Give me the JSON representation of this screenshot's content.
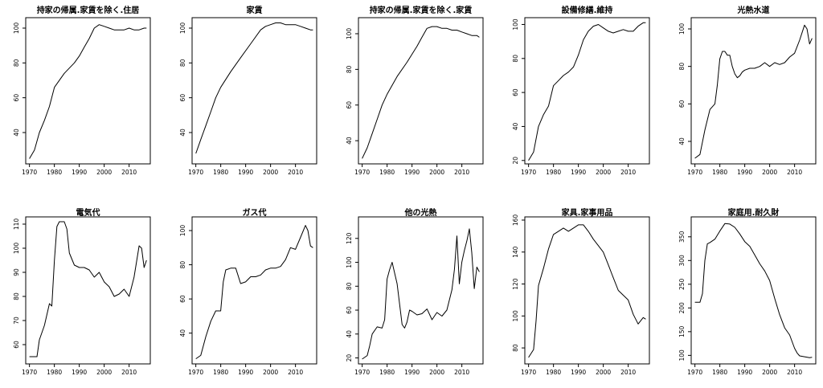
{
  "chart_data": [
    {
      "type": "line",
      "title": "持家の帰属.家賃を除く.住居",
      "x": [
        1970,
        1972,
        1974,
        1976,
        1978,
        1980,
        1984,
        1988,
        1990,
        1992,
        1994,
        1996,
        1998,
        2000,
        2002,
        2004,
        2006,
        2008,
        2010,
        2012,
        2014,
        2016,
        2017
      ],
      "values": [
        25,
        30,
        40,
        47,
        55,
        66,
        74,
        80,
        84,
        89,
        94,
        100,
        102,
        101,
        100,
        99,
        99,
        99,
        100,
        99,
        99,
        100,
        100
      ],
      "xlim": [
        1968.5,
        2018.5
      ],
      "ylim": [
        22,
        106
      ],
      "xticks": [
        "1970",
        "1980",
        "1990",
        "2000",
        "2010"
      ],
      "yticks": [
        "40",
        "60",
        "80",
        "100"
      ]
    },
    {
      "type": "line",
      "title": "家賃",
      "x": [
        1970,
        1972,
        1974,
        1976,
        1978,
        1980,
        1984,
        1988,
        1992,
        1996,
        1998,
        2000,
        2002,
        2004,
        2006,
        2008,
        2010,
        2012,
        2014,
        2016,
        2017
      ],
      "values": [
        28,
        36,
        44,
        52,
        60,
        66,
        75,
        83,
        91,
        99,
        101,
        102,
        103,
        103,
        102,
        102,
        102,
        101,
        100,
        99,
        99
      ],
      "xlim": [
        1968.5,
        2018.5
      ],
      "ylim": [
        22,
        106
      ],
      "xticks": [
        "1970",
        "1980",
        "1990",
        "2000",
        "2010"
      ],
      "yticks": [
        "40",
        "60",
        "80",
        "100"
      ]
    },
    {
      "type": "line",
      "title": "持家の帰属.家賃を除く.家賃",
      "x": [
        1970,
        1972,
        1974,
        1976,
        1978,
        1980,
        1984,
        1988,
        1992,
        1994,
        1996,
        1998,
        2000,
        2002,
        2004,
        2006,
        2008,
        2010,
        2012,
        2014,
        2016,
        2017
      ],
      "values": [
        30,
        36,
        44,
        52,
        60,
        66,
        76,
        84,
        93,
        98,
        103,
        104,
        104,
        103,
        103,
        102,
        102,
        101,
        100,
        99,
        99,
        98
      ],
      "xlim": [
        1968.5,
        2018.5
      ],
      "ylim": [
        27,
        109
      ],
      "xticks": [
        "1970",
        "1980",
        "1990",
        "2000",
        "2010"
      ],
      "yticks": [
        "40",
        "60",
        "80",
        "100"
      ]
    },
    {
      "type": "line",
      "title": "設備修繕.維持",
      "x": [
        1970,
        1972,
        1974,
        1976,
        1978,
        1980,
        1982,
        1984,
        1986,
        1988,
        1990,
        1992,
        1994,
        1996,
        1998,
        2000,
        2002,
        2004,
        2006,
        2008,
        2010,
        2012,
        2014,
        2016,
        2017
      ],
      "values": [
        20,
        25,
        40,
        47,
        52,
        64,
        67,
        70,
        72,
        75,
        82,
        91,
        96,
        99,
        100,
        98,
        96,
        95,
        96,
        97,
        96,
        96,
        99,
        101,
        101
      ],
      "xlim": [
        1968.5,
        2018.5
      ],
      "ylim": [
        18,
        104
      ],
      "xticks": [
        "1970",
        "1980",
        "1990",
        "2000",
        "2010"
      ],
      "yticks": [
        "20",
        "40",
        "60",
        "80",
        "100"
      ]
    },
    {
      "type": "line",
      "title": "光熱水道",
      "x": [
        1970,
        1972,
        1974,
        1976,
        1978,
        1979,
        1980,
        1981,
        1982,
        1983,
        1984,
        1985,
        1986,
        1987,
        1988,
        1989,
        1990,
        1992,
        1994,
        1996,
        1998,
        2000,
        2002,
        2004,
        2006,
        2008,
        2010,
        2012,
        2014,
        2015,
        2016,
        2017
      ],
      "values": [
        31,
        33,
        46,
        57,
        60,
        70,
        84,
        88,
        88,
        86,
        86,
        80,
        76,
        74,
        75,
        77,
        78,
        79,
        79,
        80,
        82,
        80,
        82,
        81,
        82,
        85,
        87,
        94,
        102,
        100,
        92,
        95
      ],
      "xlim": [
        1968.5,
        2018.5
      ],
      "ylim": [
        28,
        106
      ],
      "xticks": [
        "1970",
        "1980",
        "1990",
        "2000",
        "2010"
      ],
      "yticks": [
        "40",
        "60",
        "80",
        "100"
      ]
    },
    {
      "type": "line",
      "title": "電気代",
      "x": [
        1970,
        1972,
        1973,
        1974,
        1976,
        1978,
        1979,
        1980,
        1981,
        1982,
        1984,
        1985,
        1986,
        1988,
        1990,
        1992,
        1994,
        1996,
        1998,
        2000,
        2002,
        2004,
        2006,
        2008,
        2010,
        2012,
        2014,
        2015,
        2016,
        2017
      ],
      "values": [
        55,
        55,
        55,
        62,
        68,
        77,
        76,
        95,
        109,
        111,
        111,
        108,
        98,
        93,
        92,
        92,
        91,
        88,
        90,
        86,
        84,
        80,
        81,
        83,
        80,
        88,
        101,
        100,
        92,
        95
      ],
      "xlim": [
        1968.5,
        2018.5
      ],
      "ylim": [
        52,
        113
      ],
      "xticks": [
        "1970",
        "1980",
        "1990",
        "2000",
        "2010"
      ],
      "yticks": [
        "60",
        "70",
        "80",
        "90",
        "100",
        "110"
      ]
    },
    {
      "type": "line",
      "title": "ガス代",
      "x": [
        1970,
        1972,
        1974,
        1976,
        1978,
        1980,
        1981,
        1982,
        1984,
        1986,
        1988,
        1990,
        1992,
        1994,
        1996,
        1998,
        2000,
        2002,
        2004,
        2006,
        2008,
        2010,
        2012,
        2014,
        2015,
        2016,
        2017
      ],
      "values": [
        25,
        27,
        38,
        47,
        53,
        53,
        70,
        77,
        78,
        78,
        69,
        70,
        73,
        73,
        74,
        77,
        78,
        78,
        79,
        83,
        90,
        89,
        96,
        103,
        100,
        91,
        90
      ],
      "xlim": [
        1968.5,
        2018.5
      ],
      "ylim": [
        22,
        108
      ],
      "xticks": [
        "1970",
        "1980",
        "1990",
        "2000",
        "2010"
      ],
      "yticks": [
        "40",
        "60",
        "80",
        "100"
      ]
    },
    {
      "type": "line",
      "title": "他の光熱",
      "x": [
        1970,
        1972,
        1973,
        1974,
        1976,
        1978,
        1979,
        1980,
        1981,
        1982,
        1984,
        1986,
        1987,
        1988,
        1989,
        1990,
        1992,
        1994,
        1996,
        1998,
        2000,
        2002,
        2004,
        2006,
        2007,
        2008,
        2009,
        2010,
        2011,
        2012,
        2013,
        2014,
        2015,
        2016,
        2017
      ],
      "values": [
        19,
        22,
        30,
        40,
        46,
        45,
        52,
        86,
        94,
        100,
        82,
        48,
        45,
        50,
        60,
        59,
        56,
        57,
        61,
        52,
        58,
        55,
        60,
        77,
        94,
        122,
        82,
        100,
        110,
        118,
        128,
        108,
        78,
        96,
        92
      ],
      "xlim": [
        1968.5,
        2018.5
      ],
      "ylim": [
        15,
        138
      ],
      "xticks": [
        "1970",
        "1980",
        "1990",
        "2000",
        "2010"
      ],
      "yticks": [
        "20",
        "40",
        "60",
        "80",
        "100",
        "120"
      ]
    },
    {
      "type": "line",
      "title": "家具.家事用品",
      "x": [
        1970,
        1972,
        1973,
        1974,
        1976,
        1978,
        1980,
        1982,
        1984,
        1986,
        1988,
        1990,
        1992,
        1994,
        1996,
        1998,
        2000,
        2002,
        2004,
        2006,
        2008,
        2010,
        2012,
        2014,
        2016,
        2017
      ],
      "values": [
        74,
        79,
        97,
        119,
        130,
        142,
        151,
        153,
        155,
        153,
        155,
        157,
        157,
        153,
        148,
        144,
        140,
        132,
        124,
        116,
        113,
        110,
        101,
        95,
        99,
        98
      ],
      "xlim": [
        1968.5,
        2018.5
      ],
      "ylim": [
        70,
        162
      ],
      "xticks": [
        "1970",
        "1980",
        "1990",
        "2000",
        "2010"
      ],
      "yticks": [
        "80",
        "100",
        "120",
        "140",
        "160"
      ]
    },
    {
      "type": "line",
      "title": "家庭用.耐久財",
      "x": [
        1970,
        1972,
        1973,
        1974,
        1975,
        1976,
        1978,
        1980,
        1982,
        1984,
        1986,
        1988,
        1990,
        1992,
        1994,
        1996,
        1998,
        2000,
        2002,
        2004,
        2006,
        2008,
        2010,
        2011,
        2012,
        2014,
        2016,
        2017
      ],
      "values": [
        212,
        212,
        230,
        300,
        335,
        338,
        345,
        362,
        378,
        377,
        370,
        356,
        340,
        330,
        312,
        293,
        278,
        258,
        220,
        186,
        158,
        143,
        115,
        105,
        99,
        97,
        95,
        96
      ],
      "xlim": [
        1968.5,
        2018.5
      ],
      "ylim": [
        82,
        392
      ],
      "xticks": [
        "1970",
        "1980",
        "1990",
        "2000",
        "2010"
      ],
      "yticks": [
        "100",
        "150",
        "200",
        "250",
        "300",
        "350"
      ]
    }
  ]
}
